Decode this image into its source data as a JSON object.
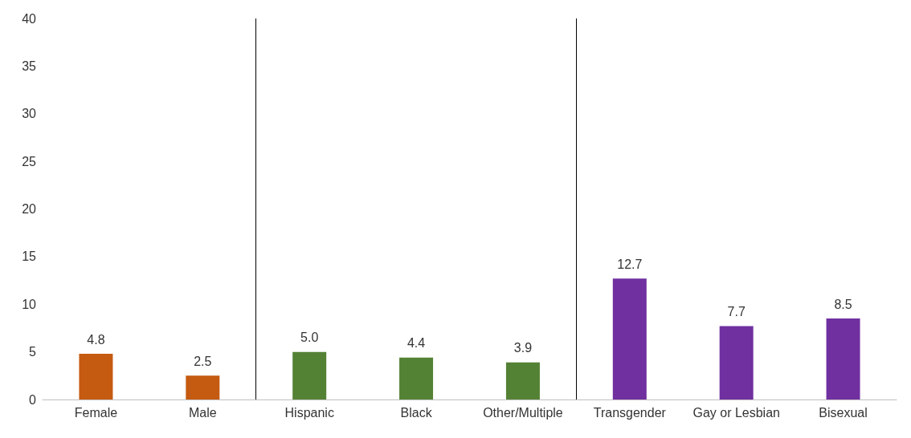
{
  "chart_data": {
    "type": "bar",
    "categories": [
      "Female",
      "Male",
      "Hispanic",
      "Black",
      "Other/Multiple",
      "Transgender",
      "Gay or Lesbian",
      "Bisexual"
    ],
    "values": [
      4.8,
      2.5,
      5.0,
      4.4,
      3.9,
      12.7,
      7.7,
      8.5
    ],
    "value_labels": [
      "4.8",
      "2.5",
      "5.0",
      "4.4",
      "3.9",
      "12.7",
      "7.7",
      "8.5"
    ],
    "colors": [
      "#c55a11",
      "#c55a11",
      "#548235",
      "#548235",
      "#548235",
      "#7030a0",
      "#7030a0",
      "#7030a0"
    ],
    "ylim": [
      0,
      40
    ],
    "yticks": [
      0,
      5,
      10,
      15,
      20,
      25,
      30,
      35,
      40
    ]
  }
}
